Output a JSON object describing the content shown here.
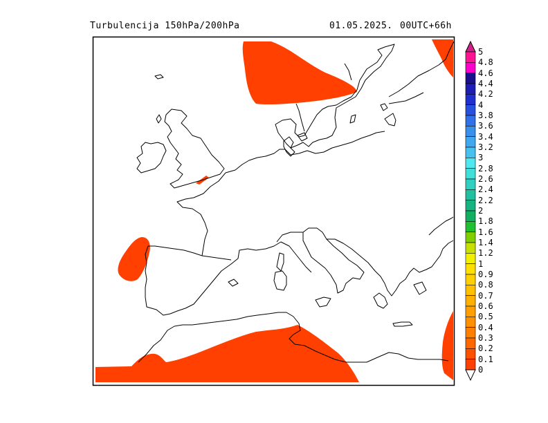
{
  "header": {
    "title": "Turbulencija 150hPa/200hPa",
    "date": "01.05.2025.",
    "run": "00UTC+66h"
  },
  "colors": {
    "turbulence_fill": "#ff4000",
    "coastline": "#000000",
    "frame": "#000000"
  },
  "colorbar": {
    "labels": [
      "5",
      "4.8",
      "4.6",
      "4.4",
      "4.2",
      "4",
      "3.8",
      "3.6",
      "3.4",
      "3.2",
      "3",
      "2.8",
      "2.6",
      "2.4",
      "2.2",
      "2",
      "1.8",
      "1.6",
      "1.4",
      "1.2",
      "1",
      "0.9",
      "0.8",
      "0.7",
      "0.6",
      "0.5",
      "0.4",
      "0.3",
      "0.2",
      "0.1",
      "0"
    ],
    "colors": [
      "#ff1493",
      "#ff00cc",
      "#1a0f8c",
      "#1e1eb4",
      "#2030d0",
      "#2850e0",
      "#3070e8",
      "#3890ec",
      "#40a8f0",
      "#48c0f0",
      "#50e8f0",
      "#40e0d8",
      "#30d0c0",
      "#20c0a0",
      "#18b480",
      "#10b060",
      "#20c030",
      "#80d000",
      "#c8e000",
      "#f0f000",
      "#ffe000",
      "#ffd000",
      "#ffc000",
      "#ffb000",
      "#ffa000",
      "#ff9000",
      "#ff8000",
      "#ff6800",
      "#ff5000",
      "#ff4000"
    ]
  }
}
